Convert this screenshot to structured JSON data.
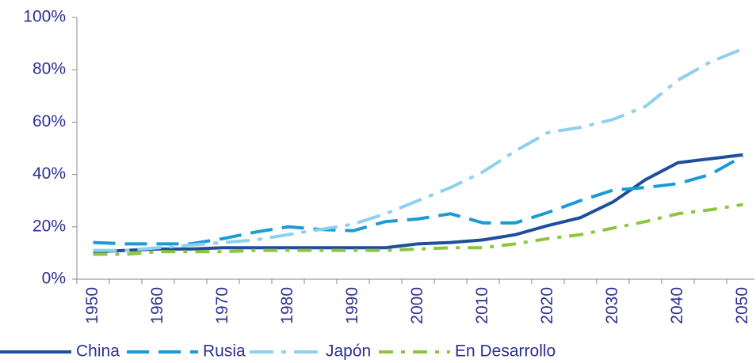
{
  "chart_data": {
    "type": "line",
    "categories": [
      "1950",
      null,
      "1960",
      null,
      "1970",
      null,
      "1980",
      null,
      "1990",
      null,
      "2000",
      null,
      "2010",
      null,
      "2020",
      null,
      "2030",
      null,
      "2040",
      null,
      "2050"
    ],
    "series": [
      {
        "name": "China",
        "color": "#1f4e9c",
        "dash": "",
        "values": [
          10.5,
          11,
          11.5,
          11.5,
          12,
          12,
          12,
          12,
          12,
          12,
          13.5,
          14,
          15,
          17,
          20.5,
          23.5,
          29.5,
          38,
          44.5,
          46,
          47.5
        ]
      },
      {
        "name": "Rusia",
        "color": "#1a9ad6",
        "dash": "28 12",
        "values": [
          14,
          13.5,
          13.5,
          13.5,
          15.5,
          18,
          20,
          19,
          18.5,
          22,
          23,
          25,
          21.5,
          21.5,
          25.5,
          30,
          34,
          35,
          36.5,
          40,
          47
        ]
      },
      {
        "name": "Japón",
        "color": "#8fd0ef",
        "dash": "30 10 6 10",
        "values": [
          11,
          11,
          12,
          13,
          14,
          15,
          17,
          19,
          21,
          25,
          30,
          35,
          41,
          49,
          56,
          58,
          61,
          66,
          76,
          83,
          88
        ]
      },
      {
        "name": "En Desarrollo",
        "color": "#8cc63f",
        "dash": "18 10 5 10",
        "values": [
          9.5,
          9.5,
          10.5,
          10.5,
          10.5,
          11,
          11,
          11,
          11,
          11,
          11.5,
          12,
          12,
          13.5,
          15.5,
          17,
          19.5,
          22,
          25,
          26.5,
          28.5
        ]
      }
    ],
    "ylim": [
      0,
      100
    ],
    "yticks": [
      {
        "value": 0,
        "label": "0%"
      },
      {
        "value": 20,
        "label": "20%"
      },
      {
        "value": 40,
        "label": "40%"
      },
      {
        "value": 60,
        "label": "60%"
      },
      {
        "value": 80,
        "label": "80%"
      },
      {
        "value": 100,
        "label": "100%"
      }
    ],
    "legend": "bottom"
  }
}
